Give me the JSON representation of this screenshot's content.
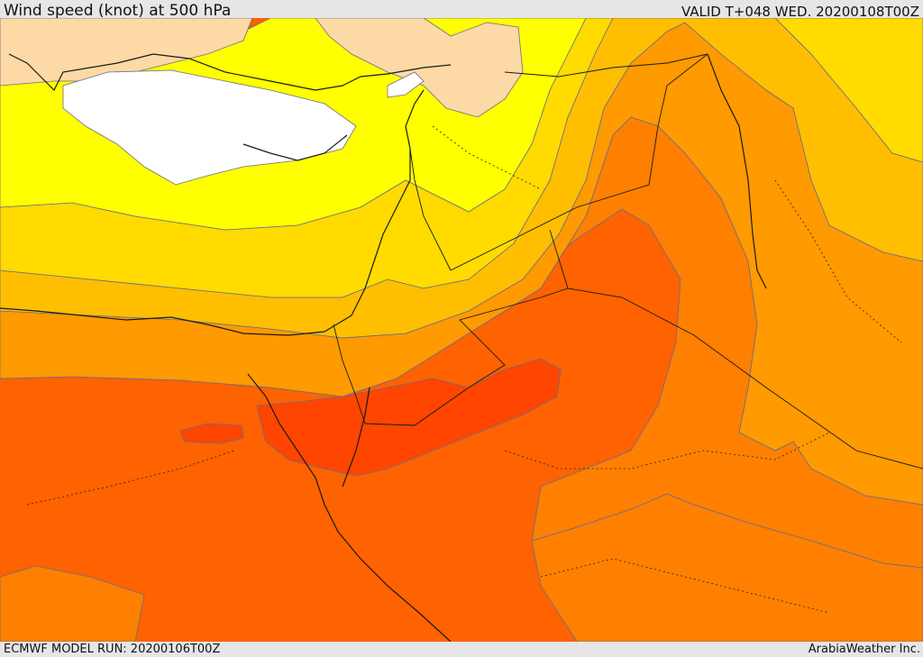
{
  "header": {
    "title": "Wind speed (knot) at 500 hPa",
    "valid": "VALID T+048 WED. 20200108T00Z"
  },
  "footer": {
    "model_run": "ECMWF MODEL RUN: 20200106T00Z",
    "credit": "ArabiaWeather Inc."
  },
  "map": {
    "field": "wind speed",
    "level": "500 hPa",
    "colors": {
      "white_band": "#ffffff",
      "peach_band": "#fdd9a5",
      "yellow_band": "#ffff00",
      "gold_band": "#ffdb00",
      "amber_band": "#ffbf00",
      "orange_light_band": "#ff9a00",
      "orange_band": "#ff8000",
      "orange_dark_band": "#ff6200",
      "red_band": "#ff4500",
      "contour_line": "#6b6b8a",
      "border_line": "#1a1a1a"
    }
  }
}
